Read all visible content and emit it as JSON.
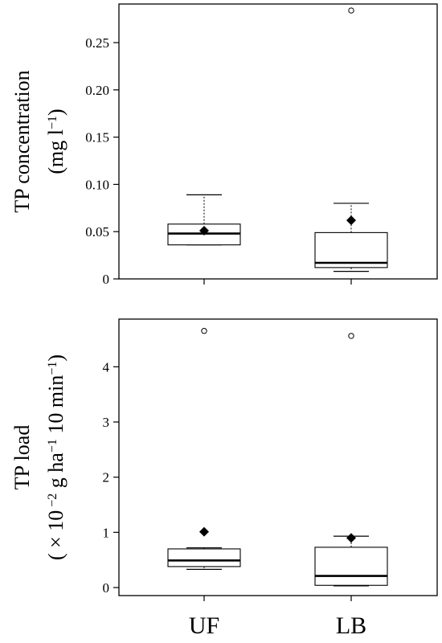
{
  "chart_data": [
    {
      "type": "box",
      "categories": [
        "UF",
        "LB"
      ],
      "ylabel_lines": [
        "TP concentration",
        "(mg l",
        "−1",
        ")"
      ],
      "yticks": [
        "0",
        "0.05",
        "0.10",
        "0.15",
        "0.20",
        "0.25"
      ],
      "ylim": [
        0,
        0.29
      ],
      "boxes": [
        {
          "category": "UF",
          "whisker_low": 0.036,
          "q1": 0.036,
          "median": 0.048,
          "q3": 0.058,
          "whisker_high": 0.089,
          "mean": 0.051,
          "outliers": []
        },
        {
          "category": "LB",
          "whisker_low": 0.008,
          "q1": 0.012,
          "median": 0.017,
          "q3": 0.049,
          "whisker_high": 0.08,
          "mean": 0.062,
          "outliers": [
            0.284
          ]
        }
      ]
    },
    {
      "type": "box",
      "categories": [
        "UF",
        "LB"
      ],
      "ylabel_lines": [
        "TP load",
        "( × 10",
        " −2",
        " g ha",
        "−1",
        " 10 min",
        "−1",
        ")"
      ],
      "yticks": [
        "0",
        "1",
        "2",
        "3",
        "4"
      ],
      "ylim": [
        0,
        4.85
      ],
      "boxes": [
        {
          "category": "UF",
          "whisker_low": 0.33,
          "q1": 0.38,
          "median": 0.49,
          "q3": 0.7,
          "whisker_high": 0.72,
          "mean": 1.01,
          "outliers": [
            4.65
          ]
        },
        {
          "category": "LB",
          "whisker_low": 0.03,
          "q1": 0.04,
          "median": 0.21,
          "q3": 0.73,
          "whisker_high": 0.93,
          "mean": 0.9,
          "outliers": [
            4.56
          ]
        }
      ]
    }
  ]
}
